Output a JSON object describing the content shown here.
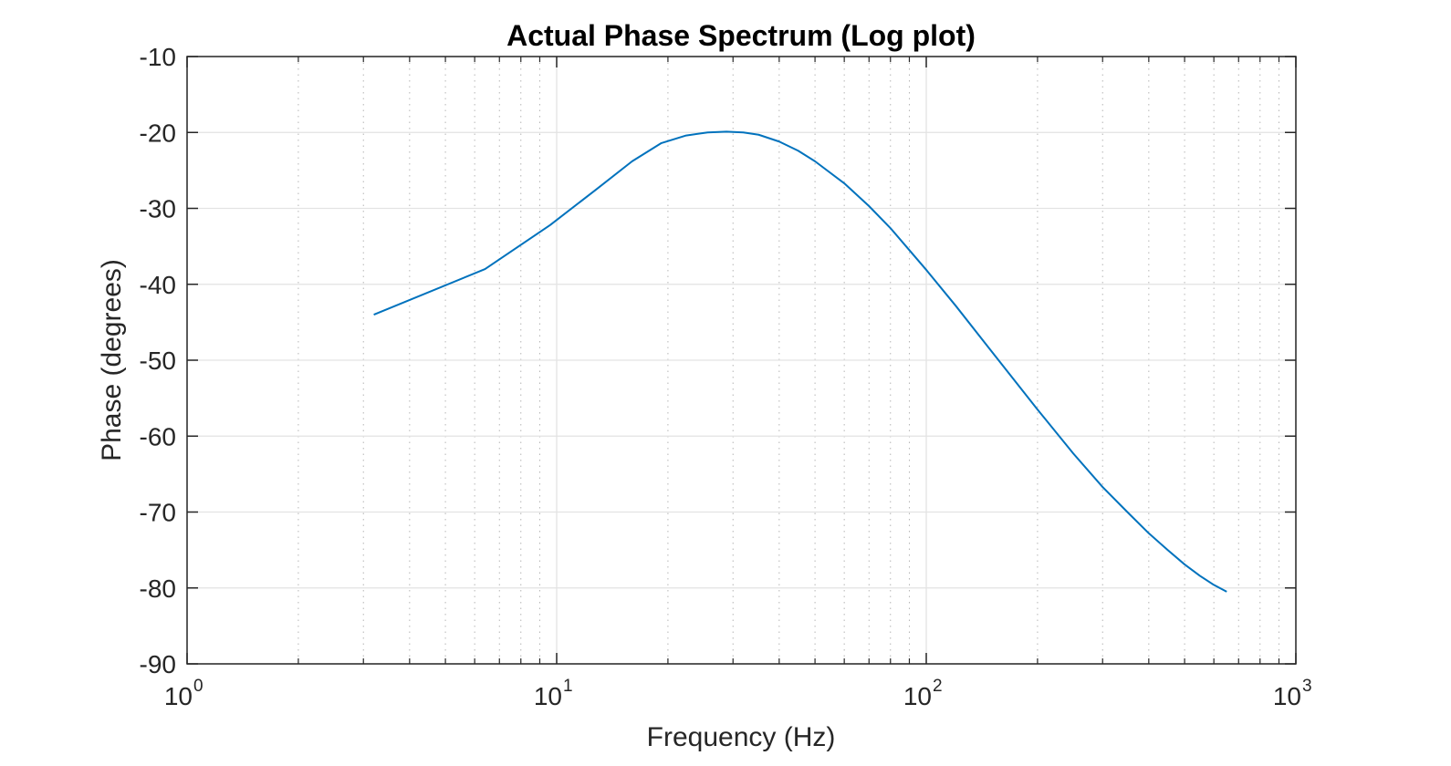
{
  "chart_data": {
    "type": "line",
    "title": "Actual Phase Spectrum (Log plot)",
    "xlabel": "Frequency (Hz)",
    "ylabel": "Phase (degrees)",
    "xscale": "log",
    "xlim": [
      1,
      1000
    ],
    "ylim": [
      -90,
      -10
    ],
    "grid": true,
    "minor_grid_x": true,
    "x_ticks": [
      {
        "value": 1,
        "base": "10",
        "exp": "0"
      },
      {
        "value": 10,
        "base": "10",
        "exp": "1"
      },
      {
        "value": 100,
        "base": "10",
        "exp": "2"
      },
      {
        "value": 1000,
        "base": "10",
        "exp": "3"
      }
    ],
    "y_ticks": [
      {
        "value": -10,
        "label": "-10"
      },
      {
        "value": -20,
        "label": "-20"
      },
      {
        "value": -30,
        "label": "-30"
      },
      {
        "value": -40,
        "label": "-40"
      },
      {
        "value": -50,
        "label": "-50"
      },
      {
        "value": -60,
        "label": "-60"
      },
      {
        "value": -70,
        "label": "-70"
      },
      {
        "value": -80,
        "label": "-80"
      },
      {
        "value": -90,
        "label": "-90"
      }
    ],
    "series": [
      {
        "color": "#0072BD",
        "x": [
          3.2,
          6.4,
          9.6,
          12.8,
          16,
          19.2,
          22.4,
          25.6,
          28.8,
          32,
          35.2,
          40,
          45,
          50,
          60,
          70,
          80,
          90,
          100,
          120,
          150,
          200,
          250,
          300,
          350,
          400,
          450,
          500,
          550,
          600,
          650
        ],
        "y": [
          -44,
          -38,
          -32.2,
          -27.5,
          -23.8,
          -21.4,
          -20.4,
          -20.0,
          -19.9,
          -20.0,
          -20.3,
          -21.2,
          -22.4,
          -23.8,
          -26.7,
          -29.7,
          -32.6,
          -35.5,
          -38.1,
          -42.8,
          -48.8,
          -56.5,
          -62.3,
          -66.7,
          -70.0,
          -72.8,
          -75.0,
          -76.9,
          -78.4,
          -79.6,
          -80.5
        ]
      }
    ]
  }
}
